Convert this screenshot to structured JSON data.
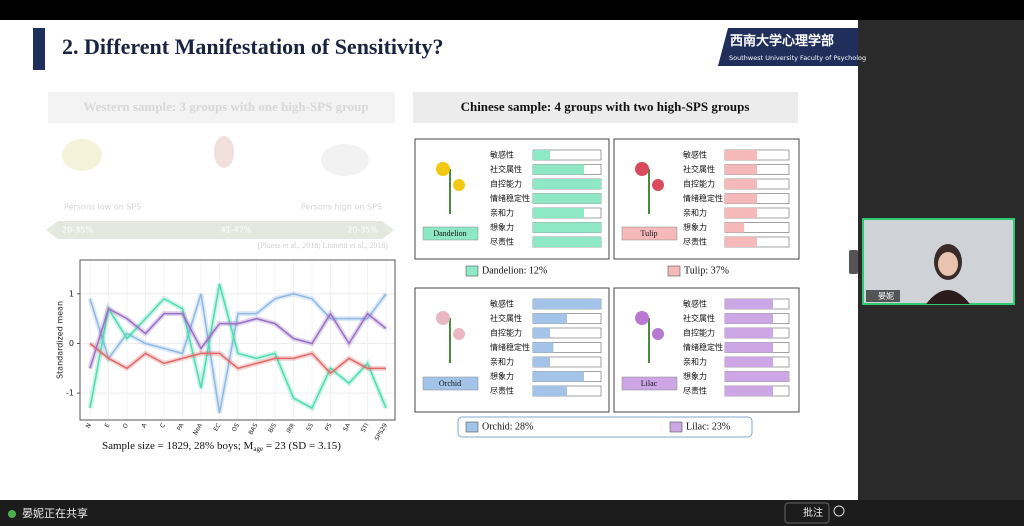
{
  "chart_data": {
    "type": "line",
    "y_label": "Standardized mean",
    "categories": [
      "N",
      "E",
      "O",
      "A",
      "C",
      "PA",
      "NeA",
      "EC",
      "OS",
      "BAS",
      "BIS",
      "IRR",
      "SS",
      "PS",
      "SA",
      "STI",
      "SPS29"
    ],
    "ylim": [
      -1.5,
      1.6
    ],
    "yticks": [
      -1,
      0,
      1
    ],
    "grid": true,
    "series": [
      {
        "color": "#8fb8e3",
        "values": [
          0.9,
          -0.3,
          0.2,
          0.0,
          -0.1,
          -0.2,
          1.0,
          -1.4,
          0.6,
          0.6,
          0.9,
          1.0,
          0.9,
          0.5,
          0.5,
          0.5,
          1.0
        ]
      },
      {
        "color": "#4fdcb0",
        "values": [
          -1.3,
          0.7,
          0.1,
          0.5,
          0.9,
          0.7,
          -0.9,
          1.2,
          -0.2,
          -0.3,
          -0.2,
          -1.1,
          -1.3,
          -0.5,
          -0.8,
          -0.4,
          -1.3
        ]
      },
      {
        "color": "#e06a6a",
        "values": [
          0.0,
          -0.3,
          -0.5,
          -0.2,
          -0.4,
          -0.3,
          -0.2,
          -0.2,
          -0.5,
          -0.4,
          -0.3,
          -0.3,
          -0.2,
          -0.6,
          -0.3,
          -0.5,
          -0.5
        ]
      },
      {
        "color": "#9b6fc4",
        "values": [
          -0.5,
          0.7,
          0.5,
          0.2,
          0.6,
          0.6,
          -0.1,
          0.4,
          0.4,
          0.5,
          0.4,
          0.1,
          0.0,
          0.6,
          0.0,
          0.6,
          0.3
        ]
      }
    ]
  },
  "slide": {
    "title": "2. Different Manifestation of Sensitivity?",
    "logo": {
      "name": "西南大学心理学部",
      "subtitle": "Southwest University Faculty of Psycholog"
    },
    "western": {
      "title": "Western sample: 3 groups with one high-SPS group",
      "low": "Persons low on SPS",
      "high": "Persons high on SPS",
      "shares": [
        "20-35%",
        "41-47%",
        "20-35%"
      ],
      "citation": "(Pluess et al., 2018; Lionetti et al., 2018)"
    },
    "caption": {
      "pre": "Sample size = 1829, 28% boys; M",
      "sub": "age",
      "post": " = 23 (SD = 3.15)"
    },
    "chinese": {
      "title": "Chinese sample: 4 groups with two high-SPS groups",
      "traits": [
        "敏感性",
        "社交属性",
        "自控能力",
        "情绪稳定性",
        "亲和力",
        "想象力",
        "尽责性"
      ],
      "groups": [
        {
          "label": "Dandelion",
          "legend": "Dandelion: 12%",
          "color": "#8ee8c6",
          "values": [
            0.25,
            0.75,
            1.0,
            1.0,
            0.75,
            1.0,
            1.0
          ]
        },
        {
          "label": "Tulip",
          "legend": "Tulip: 37%",
          "color": "#f5b9b9",
          "values": [
            0.5,
            0.5,
            0.5,
            0.5,
            0.5,
            0.3,
            0.5
          ]
        },
        {
          "label": "Orchid",
          "legend": "Orchid: 28%",
          "color": "#a3c4e8",
          "values": [
            1.0,
            0.5,
            0.25,
            0.3,
            0.25,
            0.75,
            0.5
          ]
        },
        {
          "label": "Lilac",
          "legend": "Lilac: 23%",
          "color": "#cda6e6",
          "values": [
            0.75,
            0.75,
            0.75,
            0.75,
            0.75,
            1.0,
            0.75
          ]
        }
      ]
    }
  },
  "meeting": {
    "presenter": "晏妮",
    "sharing": "晏妮正在共享",
    "annotate": "批注"
  }
}
